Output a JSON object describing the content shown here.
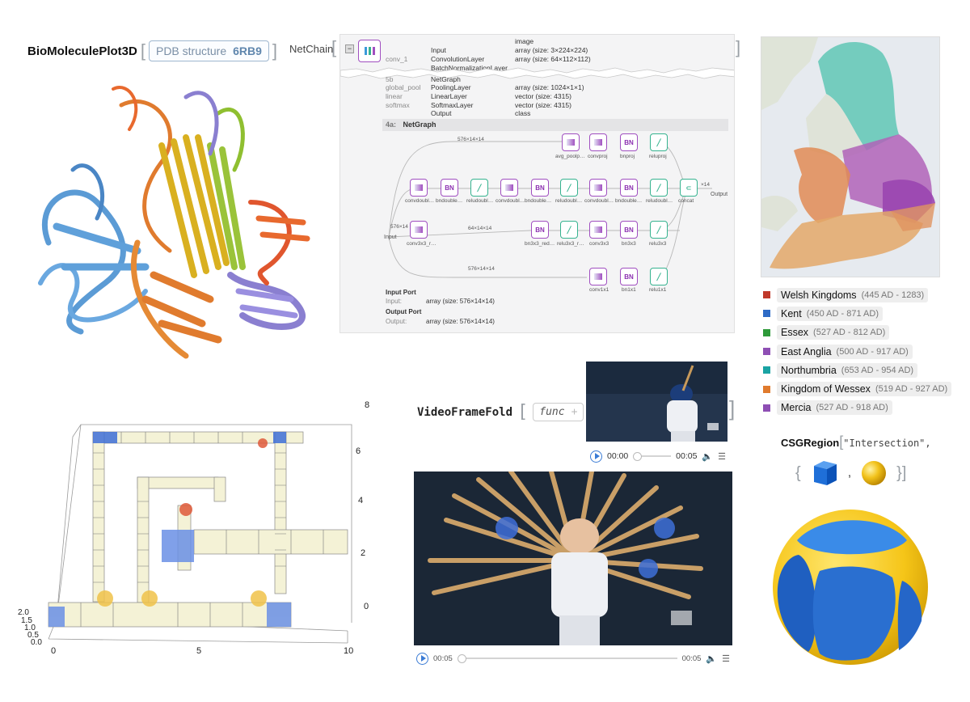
{
  "bio": {
    "function_name": "BioMoleculePlot3D",
    "arg_label": "PDB structure",
    "arg_value": "6RB9"
  },
  "netchain": {
    "label": "NetChain",
    "top_rows": [
      {
        "name": "",
        "layer": "Input",
        "type": "image"
      },
      {
        "name": "",
        "layer": "",
        "type": "array (size: 3×224×224)"
      },
      {
        "name": "conv_1",
        "layer": "ConvolutionLayer",
        "type": "array (size: 64×112×112)"
      },
      {
        "name": "",
        "layer": "BatchNormalizationLayer",
        "type": ""
      }
    ],
    "bottom_rows": [
      {
        "name": "5b",
        "layer": "NetGraph",
        "type": ""
      },
      {
        "name": "global_pool",
        "layer": "PoolingLayer",
        "type": "array (size: 1024×1×1)"
      },
      {
        "name": "linear",
        "layer": "LinearLayer",
        "type": "vector (size: 4315)"
      },
      {
        "name": "softmax",
        "layer": "SoftmaxLayer",
        "type": "vector (size: 4315)"
      },
      {
        "name": "",
        "layer": "Output",
        "type": "class"
      }
    ],
    "subgraph_id": "4a:",
    "subgraph_name": "NetGraph",
    "input_label": "Input",
    "output_label": "Output",
    "nodes": {
      "avg_pool": "avg_poolp…",
      "convproj": "convproj",
      "bnproj": "bnproj",
      "reluproj": "reluproj",
      "conv_d1": "convdoubl…",
      "bn_d1": "bndouble…",
      "relu_d1": "reludoubl…",
      "conv_d2": "convdoubl…",
      "bn_d2": "bndouble…",
      "relu_d2": "reludoubl…",
      "conv_d3": "convdoubl…",
      "bn_d3": "bndouble…",
      "relu_d3": "reludoubl…",
      "concat": "concat",
      "conv3r": "conv3x3_r…",
      "bn3r": "bn3x3_red…",
      "relu3r": "relu3x3_r…",
      "conv3": "conv3x3",
      "bn3": "bn3x3",
      "relu3": "relu3x3",
      "conv1": "conv1x1",
      "bn1": "bn1x1",
      "relu1": "relu1x1"
    },
    "bn_text": "BN",
    "edge_labels": {
      "top": "576×14×14",
      "mid": "64×14×14",
      "bottom": "576×14×14",
      "in": "576×14",
      "short": "×14"
    },
    "input_port": {
      "heading": "Input Port",
      "key": "Input:",
      "value": "array (size: 576×14×14)"
    },
    "output_port": {
      "heading": "Output Port",
      "key": "Output:",
      "value": "array (size: 576×14×14)"
    }
  },
  "map": {
    "legend": [
      {
        "name": "Welsh Kingdoms",
        "dates": "(445 AD - 1283)",
        "color": "#c0392b"
      },
      {
        "name": "Kent",
        "dates": "(450 AD - 871 AD)",
        "color": "#2e6bc6"
      },
      {
        "name": "Essex",
        "dates": "(527 AD - 812 AD)",
        "color": "#2e9a3a"
      },
      {
        "name": "East Anglia",
        "dates": "(500 AD - 917 AD)",
        "color": "#8e4fb4"
      },
      {
        "name": "Northumbria",
        "dates": "(653 AD - 954 AD)",
        "color": "#1aa3a3"
      },
      {
        "name": "Kingdom of Wessex",
        "dates": "(519 AD - 927 AD)",
        "color": "#e07b2e"
      },
      {
        "name": "Mercia",
        "dates": "(527 AD - 918 AD)",
        "color": "#8e4fb4"
      }
    ]
  },
  "plot3d": {
    "z_ticks": [
      "0",
      "2",
      "4",
      "6",
      "8"
    ],
    "x_ticks": [
      "0",
      "5",
      "10"
    ],
    "y_ticks": [
      "2.0",
      "1.5",
      "1.0",
      "0.5",
      "0.0"
    ]
  },
  "vff": {
    "function_name": "VideoFrameFold",
    "arg": "func",
    "small_time_current": "00:00",
    "small_time_total": "00:05",
    "big_time_current": "00:05",
    "big_time_total": "00:05"
  },
  "csg": {
    "function_name": "CSGRegion",
    "arg": "\"Intersection\","
  }
}
